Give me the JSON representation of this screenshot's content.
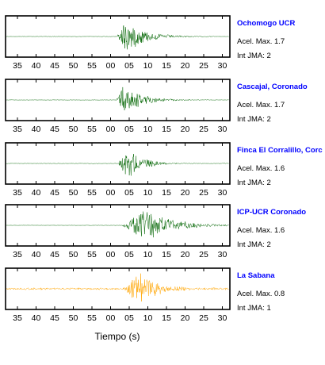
{
  "colors": {
    "station_name": "#0000ff",
    "frame": "#000000"
  },
  "chart_data": {
    "type": "line",
    "xlabel": "Tiempo (s)",
    "x_tick_labels": [
      "35",
      "40",
      "45",
      "50",
      "55",
      "00",
      "05",
      "10",
      "15",
      "20",
      "25",
      "30"
    ],
    "grid": false,
    "legend": "none",
    "panels": [
      {
        "name": "Ochomogo UCR",
        "color": "#006400",
        "acel_label": "Acel. Max. 1.7",
        "jma_label": "Int JMA: 2",
        "onset_tick": 5.35,
        "peak_tick": 5.75,
        "amplitude": 0.95,
        "decay": 0.42,
        "noise": 0.012
      },
      {
        "name": "Cascajal, Coronado",
        "color": "#006400",
        "acel_label": "Acel. Max. 1.7",
        "jma_label": "Int JMA: 2",
        "onset_tick": 5.3,
        "peak_tick": 5.7,
        "amplitude": 0.9,
        "decay": 0.48,
        "noise": 0.012
      },
      {
        "name": "Finca El Corralillo, Corc",
        "color": "#006400",
        "acel_label": "Acel. Max. 1.6",
        "jma_label": "Int JMA: 2",
        "onset_tick": 5.4,
        "peak_tick": 5.95,
        "amplitude": 0.85,
        "decay": 0.55,
        "noise": 0.012
      },
      {
        "name": "ICP-UCR Coronado",
        "color": "#006400",
        "acel_label": "Acel. Max. 1.6",
        "jma_label": "Int JMA: 2",
        "onset_tick": 5.6,
        "peak_tick": 6.8,
        "amplitude": 0.92,
        "decay": 0.3,
        "noise": 0.01
      },
      {
        "name": "La Sabana",
        "color": "#ffa500",
        "acel_label": "Acel. Max. 0.8",
        "jma_label": "Int JMA: 1",
        "onset_tick": 5.7,
        "peak_tick": 6.6,
        "amplitude": 0.95,
        "decay": 0.55,
        "noise": 0.06
      }
    ]
  }
}
